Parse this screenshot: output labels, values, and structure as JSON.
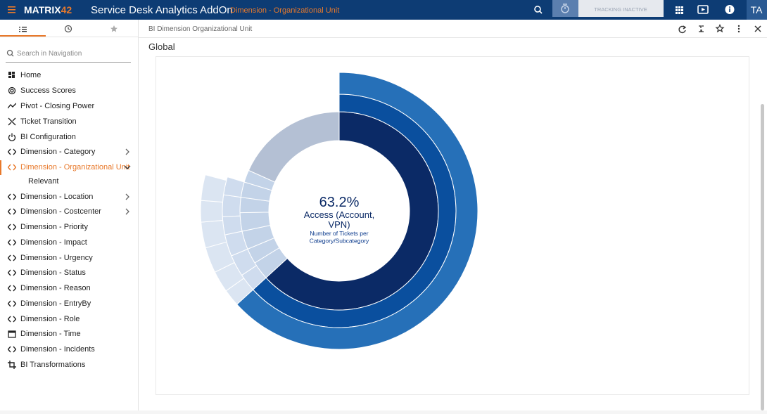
{
  "header": {
    "logo": [
      "MATRIX",
      "42"
    ],
    "app_title": "Service Desk Analytics AddOn",
    "context": "Dimension - Organizational Unit",
    "tracking": "TRACKING INACTIVE",
    "user": "TA"
  },
  "sidebar": {
    "search_placeholder": "Search in Navigation",
    "items": [
      {
        "label": "Home",
        "icon": "home"
      },
      {
        "label": "Success Scores",
        "icon": "target"
      },
      {
        "label": "Pivot - Closing Power",
        "icon": "trend"
      },
      {
        "label": "Ticket Transition",
        "icon": "shuffle"
      },
      {
        "label": "BI Configuration",
        "icon": "power"
      },
      {
        "label": "Dimension - Category",
        "icon": "code",
        "expandable": true
      },
      {
        "label": "Dimension - Organizational Unit",
        "icon": "code",
        "expandable": true,
        "active": true
      },
      {
        "label": "Relevant",
        "icon": "none",
        "sub": true
      },
      {
        "label": "Dimension - Location",
        "icon": "code",
        "expandable": true
      },
      {
        "label": "Dimension - Costcenter",
        "icon": "code",
        "expandable": true
      },
      {
        "label": "Dimension - Priority",
        "icon": "code"
      },
      {
        "label": "Dimension - Impact",
        "icon": "code"
      },
      {
        "label": "Dimension - Urgency",
        "icon": "code"
      },
      {
        "label": "Dimension - Status",
        "icon": "code"
      },
      {
        "label": "Dimension - Reason",
        "icon": "code"
      },
      {
        "label": "Dimension - EntryBy",
        "icon": "code"
      },
      {
        "label": "Dimension - Role",
        "icon": "code"
      },
      {
        "label": "Dimension - Time",
        "icon": "calendar"
      },
      {
        "label": "Dimension - Incidents",
        "icon": "code"
      },
      {
        "label": "BI Transformations",
        "icon": "crop"
      }
    ]
  },
  "panel": {
    "breadcrumb": "BI Dimension Organizational Unit",
    "section": "Global"
  },
  "chart_data": {
    "type": "sunburst",
    "center": {
      "value": 63.2,
      "value_label": "63.2%",
      "label_lines": [
        "Access (Account,",
        "VPN)"
      ],
      "caption_lines": [
        "Number of Tickets per",
        "Category/Subcategory"
      ]
    },
    "rings": [
      {
        "segments": [
          {
            "value": 63.2,
            "color": "#0b2a66"
          },
          {
            "value": 3,
            "color": "#c3d3e8"
          },
          {
            "value": 2.5,
            "color": "#c3d3e8"
          },
          {
            "value": 3,
            "color": "#c3d3e8"
          },
          {
            "value": 3,
            "color": "#c3d3e8"
          },
          {
            "value": 2.5,
            "color": "#c3d3e8"
          },
          {
            "value": 2.5,
            "color": "#c3d3e8"
          },
          {
            "value": 2,
            "color": "#c3d3e8"
          },
          {
            "value": 18.3,
            "color": "#b4c0d4"
          }
        ]
      },
      {
        "segments": [
          {
            "value": 63.2,
            "color": "#0a4f9e"
          },
          {
            "value": 2.5,
            "color": "#cfdcee"
          },
          {
            "value": 3,
            "color": "#cfdcee"
          },
          {
            "value": 3,
            "color": "#cfdcee"
          },
          {
            "value": 2.5,
            "color": "#cfdcee"
          },
          {
            "value": 3,
            "color": "#cfdcee"
          },
          {
            "value": 2.5,
            "color": "#cfdcee"
          }
        ]
      },
      {
        "segments": [
          {
            "value": 63.2,
            "color": "#2670b8"
          },
          {
            "value": 2,
            "color": "#dbe5f2"
          },
          {
            "value": 2.5,
            "color": "#dbe5f2"
          },
          {
            "value": 3,
            "color": "#dbe5f2"
          },
          {
            "value": 3,
            "color": "#dbe5f2"
          },
          {
            "value": 2.5,
            "color": "#dbe5f2"
          },
          {
            "value": 3,
            "color": "#dbe5f2"
          }
        ]
      }
    ]
  }
}
